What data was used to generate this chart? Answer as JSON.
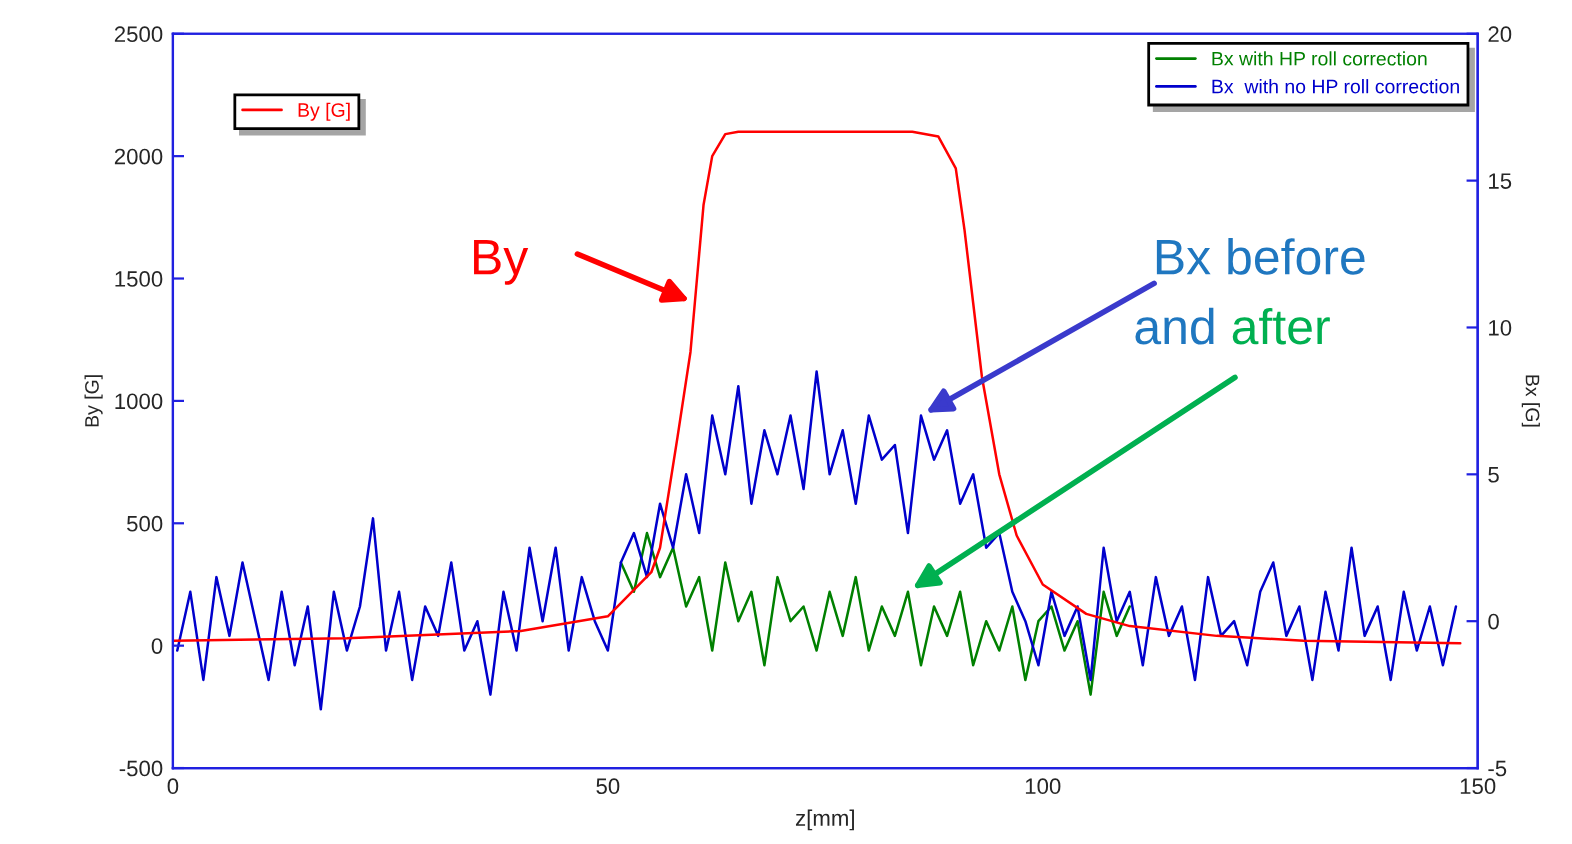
{
  "chart_data": {
    "type": "line",
    "xlabel": "z[mm]",
    "ylabel": "By [G]",
    "y2label": "Bx [G]",
    "xlim": [
      0,
      150
    ],
    "xticks": [
      0,
      50,
      100,
      150
    ],
    "ylim": [
      -500,
      2500
    ],
    "yticks": [
      -500,
      0,
      500,
      1000,
      1500,
      2000,
      2500
    ],
    "y2lim": [
      -5,
      20
    ],
    "y2ticks": [
      -5,
      0,
      5,
      10,
      15,
      20
    ],
    "grid": false,
    "legend": "top right",
    "marker": "none",
    "line_style": "solid",
    "series": [
      {
        "name": "Bx with HP roll correction",
        "color": "#008000",
        "axis": "y2",
        "x": [
          51.5,
          53,
          54.5,
          56,
          57.5,
          59,
          60.5,
          62,
          63.5,
          65,
          66.5,
          68,
          69.5,
          71,
          72.5,
          74,
          75.5,
          77,
          78.5,
          80,
          81.5,
          83,
          84.5,
          86,
          87.5,
          89,
          90.5,
          92,
          93.5,
          95,
          96.5,
          98,
          99.5,
          101,
          102.5,
          104,
          105.5,
          107,
          108.5,
          110
        ],
        "values": [
          2,
          1,
          3,
          1.5,
          2.5,
          0.5,
          1.5,
          -1,
          2,
          0,
          1,
          -1.5,
          1.5,
          0,
          0.5,
          -1,
          1,
          -0.5,
          1.5,
          -1,
          0.5,
          -0.5,
          1,
          -1.5,
          0.5,
          -0.5,
          1,
          -1.5,
          0,
          -1,
          0.5,
          -2,
          0,
          0.5,
          -1,
          0,
          -2.5,
          1,
          -0.5,
          0.5
        ]
      },
      {
        "name": "Bx  with no HP roll correction",
        "color": "#0000cc",
        "axis": "y2",
        "x": [
          0.5,
          2,
          3.5,
          5,
          6.5,
          8,
          9.5,
          11,
          12.5,
          14,
          15.5,
          17,
          18.5,
          20,
          21.5,
          23,
          24.5,
          26,
          27.5,
          29,
          30.5,
          32,
          33.5,
          35,
          36.5,
          38,
          39.5,
          41,
          42.5,
          44,
          45.5,
          47,
          48.5,
          50,
          51.5,
          53,
          54.5,
          56,
          57.5,
          59,
          60.5,
          62,
          63.5,
          65,
          66.5,
          68,
          69.5,
          71,
          72.5,
          74,
          75.5,
          77,
          78.5,
          80,
          81.5,
          83,
          84.5,
          86,
          87.5,
          89,
          90.5,
          92,
          93.5,
          95,
          96.5,
          98,
          99.5,
          101,
          102.5,
          104,
          105.5,
          107,
          108.5,
          110,
          111.5,
          113,
          114.5,
          116,
          117.5,
          119,
          120.5,
          122,
          123.5,
          125,
          126.5,
          128,
          129.5,
          131,
          132.5,
          134,
          135.5,
          137,
          138.5,
          140,
          141.5,
          143,
          144.5,
          146,
          147.5
        ],
        "values": [
          -1,
          1,
          -2,
          1.5,
          -0.5,
          2,
          0,
          -2,
          1,
          -1.5,
          0.5,
          -3,
          1,
          -1,
          0.5,
          3.5,
          -1,
          1,
          -2,
          0.5,
          -0.5,
          2,
          -1,
          0,
          -2.5,
          1,
          -1,
          2.5,
          0,
          2.5,
          -1,
          1.5,
          0,
          -1,
          2,
          3,
          1.5,
          4,
          2.5,
          5,
          3,
          7,
          5,
          8,
          4,
          6.5,
          5,
          7,
          4.5,
          8.5,
          5,
          6.5,
          4,
          7,
          5.5,
          6,
          3,
          7,
          5.5,
          6.5,
          4,
          5,
          2.5,
          3,
          1,
          0,
          -1.5,
          1,
          -0.5,
          0.5,
          -2,
          2.5,
          0,
          1,
          -1.5,
          1.5,
          -0.5,
          0.5,
          -2,
          1.5,
          -0.5,
          0,
          -1.5,
          1,
          2,
          -0.5,
          0.5,
          -2,
          1,
          -1,
          2.5,
          -0.5,
          0.5,
          -2,
          1,
          -1,
          0.5,
          -1.5,
          0.5
        ]
      },
      {
        "name": "By [G]",
        "color": "#ff0000",
        "axis": "y",
        "x": [
          0,
          20,
          40,
          50,
          55,
          56,
          58,
          59.5,
          60,
          61,
          62,
          63.5,
          65,
          67,
          85,
          88,
          90,
          91,
          92,
          93,
          95,
          97,
          100,
          105,
          110,
          120,
          130,
          148
        ],
        "values": [
          20,
          30,
          60,
          120,
          300,
          400,
          850,
          1200,
          1400,
          1800,
          2000,
          2090,
          2100,
          2100,
          2100,
          2080,
          1950,
          1700,
          1400,
          1100,
          700,
          450,
          250,
          130,
          80,
          40,
          20,
          10
        ]
      }
    ],
    "annotations": [
      {
        "text": "By",
        "x": 60,
        "y": 1400
      },
      {
        "text": "Bx before",
        "x": 86,
        "y": 940
      },
      {
        "text": "and after",
        "x": 84.5,
        "y": 220
      }
    ]
  }
}
